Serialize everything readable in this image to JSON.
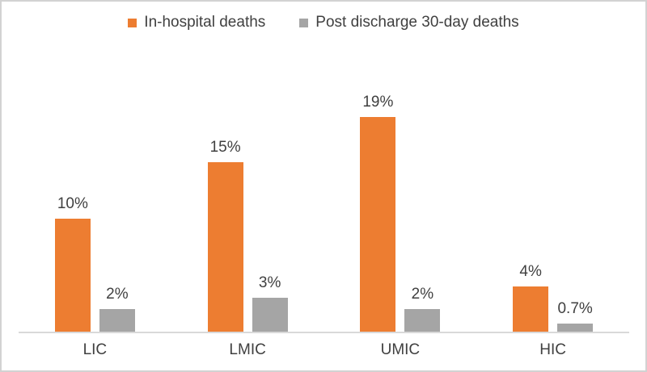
{
  "chart_data": {
    "type": "bar",
    "title": "",
    "xlabel": "",
    "ylabel": "",
    "categories": [
      "LIC",
      "LMIC",
      "UMIC",
      "HIC"
    ],
    "series": [
      {
        "name": "In-hospital deaths",
        "color": "#ED7D31",
        "values": [
          10,
          15,
          19,
          4
        ],
        "labels": [
          "10%",
          "15%",
          "19%",
          "4%"
        ]
      },
      {
        "name": "Post discharge 30-day deaths",
        "color": "#A5A5A5",
        "values": [
          2,
          3,
          2,
          0.7
        ],
        "labels": [
          "2%",
          "3%",
          "2%",
          "0.7%"
        ]
      }
    ],
    "ylim": [
      0,
      24.5
    ],
    "grid": false,
    "legend_position": "top",
    "axis_line_color": "#D9D9D9",
    "text_color": "#404040"
  }
}
